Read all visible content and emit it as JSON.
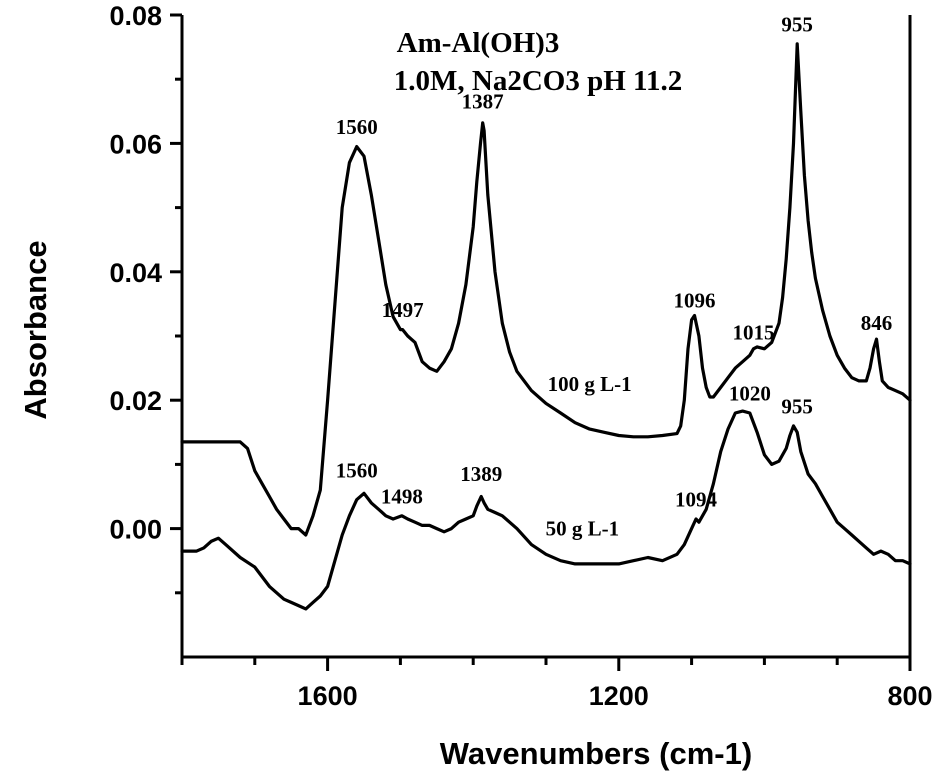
{
  "chart_data": {
    "type": "line",
    "title": "Am-Al(OH)3",
    "subtitle": "1.0M, Na2CO3  pH 11.2",
    "xlabel": "Wavenumbers (cm-1)",
    "ylabel": "Absorbance",
    "xlim": [
      1800,
      800
    ],
    "ylim": [
      -0.02,
      0.08
    ],
    "x_reversed": true,
    "xticks": [
      "1600",
      "1200",
      "800"
    ],
    "xtick_values": [
      1600,
      1200,
      800
    ],
    "yticks": [
      "0.08",
      "0.06",
      "0.04",
      "0.02",
      "0.00"
    ],
    "ytick_values": [
      0.08,
      0.06,
      0.04,
      0.02,
      0.0
    ],
    "grid": false,
    "series": [
      {
        "label": "100 g L-1",
        "x": [
          1800,
          1720,
          1710,
          1700,
          1690,
          1680,
          1670,
          1660,
          1650,
          1640,
          1630,
          1620,
          1610,
          1600,
          1590,
          1580,
          1570,
          1560,
          1550,
          1540,
          1530,
          1520,
          1510,
          1500,
          1497,
          1490,
          1480,
          1470,
          1460,
          1450,
          1440,
          1430,
          1420,
          1410,
          1400,
          1395,
          1390,
          1387,
          1385,
          1380,
          1370,
          1360,
          1350,
          1340,
          1320,
          1300,
          1280,
          1260,
          1240,
          1220,
          1200,
          1180,
          1160,
          1140,
          1120,
          1115,
          1110,
          1105,
          1100,
          1096,
          1090,
          1085,
          1080,
          1075,
          1070,
          1060,
          1050,
          1040,
          1030,
          1020,
          1015,
          1010,
          1000,
          990,
          980,
          975,
          970,
          965,
          960,
          955,
          950,
          945,
          940,
          935,
          930,
          920,
          910,
          900,
          890,
          880,
          870,
          860,
          855,
          850,
          846,
          842,
          838,
          830,
          820,
          810,
          800
        ],
        "y": [
          0.0135,
          0.0135,
          0.0125,
          0.009,
          0.007,
          0.005,
          0.003,
          0.0015,
          0.0,
          0.0,
          -0.001,
          0.002,
          0.006,
          0.02,
          0.035,
          0.05,
          0.057,
          0.0595,
          0.058,
          0.052,
          0.045,
          0.038,
          0.033,
          0.031,
          0.031,
          0.03,
          0.029,
          0.026,
          0.025,
          0.0245,
          0.026,
          0.028,
          0.032,
          0.038,
          0.047,
          0.054,
          0.06,
          0.0632,
          0.062,
          0.052,
          0.04,
          0.032,
          0.0275,
          0.0245,
          0.0215,
          0.0195,
          0.018,
          0.0165,
          0.0155,
          0.015,
          0.0145,
          0.0143,
          0.0143,
          0.0145,
          0.0148,
          0.016,
          0.02,
          0.028,
          0.0325,
          0.0332,
          0.03,
          0.025,
          0.022,
          0.0205,
          0.0205,
          0.022,
          0.0235,
          0.025,
          0.026,
          0.027,
          0.028,
          0.0283,
          0.028,
          0.029,
          0.032,
          0.036,
          0.042,
          0.05,
          0.06,
          0.0755,
          0.065,
          0.055,
          0.048,
          0.043,
          0.039,
          0.034,
          0.03,
          0.027,
          0.025,
          0.0235,
          0.023,
          0.023,
          0.025,
          0.028,
          0.0295,
          0.026,
          0.023,
          0.022,
          0.0215,
          0.021,
          0.02
        ]
      },
      {
        "label": "50 g L-1",
        "x": [
          1800,
          1780,
          1770,
          1760,
          1750,
          1740,
          1720,
          1700,
          1680,
          1660,
          1650,
          1640,
          1630,
          1620,
          1610,
          1600,
          1590,
          1580,
          1570,
          1560,
          1550,
          1540,
          1530,
          1520,
          1510,
          1498,
          1490,
          1480,
          1470,
          1460,
          1450,
          1440,
          1430,
          1420,
          1410,
          1400,
          1395,
          1389,
          1385,
          1380,
          1370,
          1360,
          1350,
          1340,
          1320,
          1300,
          1280,
          1260,
          1240,
          1220,
          1200,
          1180,
          1160,
          1140,
          1120,
          1110,
          1100,
          1094,
          1090,
          1080,
          1070,
          1060,
          1050,
          1040,
          1030,
          1020,
          1010,
          1000,
          990,
          980,
          970,
          965,
          960,
          955,
          950,
          940,
          930,
          920,
          910,
          900,
          890,
          880,
          870,
          860,
          850,
          840,
          830,
          820,
          810,
          800
        ],
        "y": [
          -0.0035,
          -0.0035,
          -0.003,
          -0.002,
          -0.0015,
          -0.0025,
          -0.0045,
          -0.006,
          -0.009,
          -0.011,
          -0.0115,
          -0.012,
          -0.0125,
          -0.0115,
          -0.0105,
          -0.009,
          -0.005,
          -0.001,
          0.002,
          0.0045,
          0.0055,
          0.004,
          0.003,
          0.002,
          0.0015,
          0.002,
          0.0015,
          0.001,
          0.0005,
          0.0005,
          0.0,
          -0.0005,
          0.0,
          0.001,
          0.0015,
          0.002,
          0.0035,
          0.005,
          0.004,
          0.003,
          0.0025,
          0.002,
          0.001,
          0.0,
          -0.0025,
          -0.004,
          -0.005,
          -0.0055,
          -0.0055,
          -0.0055,
          -0.0055,
          -0.005,
          -0.0045,
          -0.005,
          -0.004,
          -0.0025,
          0.0,
          0.0015,
          0.001,
          0.003,
          0.007,
          0.012,
          0.0155,
          0.018,
          0.0183,
          0.018,
          0.015,
          0.0115,
          0.01,
          0.0105,
          0.0125,
          0.0145,
          0.016,
          0.015,
          0.012,
          0.0085,
          0.007,
          0.005,
          0.003,
          0.001,
          0.0,
          -0.001,
          -0.002,
          -0.003,
          -0.004,
          -0.0035,
          -0.004,
          -0.005,
          -0.005,
          -0.0055
        ]
      }
    ],
    "annotations": [
      {
        "text": "1560",
        "x": 1560,
        "y": 0.0605
      },
      {
        "text": "1387",
        "x": 1387,
        "y": 0.0645
      },
      {
        "text": "1497",
        "x": 1497,
        "y": 0.032
      },
      {
        "text": "1096",
        "x": 1096,
        "y": 0.0335
      },
      {
        "text": "1015",
        "x": 1015,
        "y": 0.0285
      },
      {
        "text": "955",
        "x": 955,
        "y": 0.0765
      },
      {
        "text": "846",
        "x": 846,
        "y": 0.03
      },
      {
        "text": "100 g L-1",
        "x": 1240,
        "y": 0.0205
      },
      {
        "text": "1560",
        "x": 1560,
        "y": 0.007
      },
      {
        "text": "1498",
        "x": 1498,
        "y": 0.003
      },
      {
        "text": "1389",
        "x": 1389,
        "y": 0.0065
      },
      {
        "text": "50 g L-1",
        "x": 1250,
        "y": -0.002
      },
      {
        "text": "1094",
        "x": 1094,
        "y": 0.0025
      },
      {
        "text": "1020",
        "x": 1020,
        "y": 0.019
      },
      {
        "text": "955",
        "x": 955,
        "y": 0.017
      }
    ]
  }
}
